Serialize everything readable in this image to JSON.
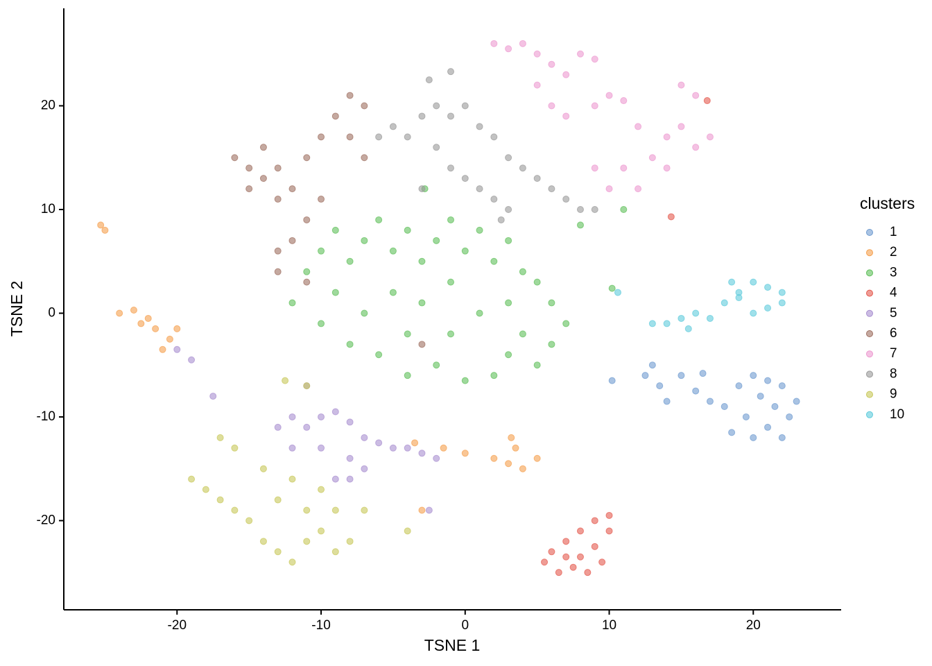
{
  "chart_data": {
    "type": "scatter",
    "x_label": "TSNE 1",
    "y_label": "TSNE 2",
    "legend_title": "clusters",
    "legend": "right",
    "grid": false,
    "xlim": [
      -27.86,
      26.1
    ],
    "ylim": [
      -28.6,
      29.4
    ],
    "xticks": [
      -20,
      -10,
      0,
      10,
      20
    ],
    "yticks": [
      -20,
      -10,
      0,
      10,
      20
    ],
    "series": [
      {
        "name": "1",
        "color": "#6f9bd0",
        "x": [
          12.5,
          13.5,
          14,
          15,
          16,
          17,
          18,
          16.5,
          19,
          20,
          21,
          22,
          23,
          22.5,
          21,
          20,
          19.5,
          21.5,
          18.5,
          20.5,
          13,
          10.2,
          22
        ],
        "y": [
          -6,
          -7,
          -8.5,
          -6,
          -7.5,
          -8.5,
          -9,
          -5.8,
          -7,
          -6,
          -6.5,
          -7,
          -8.5,
          -10,
          -11,
          -12,
          -10,
          -9,
          -11.5,
          -8,
          -5,
          -6.5,
          -12
        ]
      },
      {
        "name": "2",
        "color": "#f5a04f",
        "x": [
          -25.3,
          -25,
          -23,
          -22,
          -21.5,
          -20.5,
          -21,
          -22.5,
          -24,
          -20,
          2,
          3,
          3.5,
          4,
          3.2,
          -1.5,
          0,
          -3.5,
          5,
          -3
        ],
        "y": [
          8.5,
          8,
          0.3,
          -0.5,
          -1.5,
          -2.5,
          -3.5,
          -1,
          0,
          -1.5,
          -14,
          -14.5,
          -13,
          -15,
          -12,
          -13,
          -13.5,
          -12.5,
          -14,
          -19
        ]
      },
      {
        "name": "3",
        "color": "#5fbf5a",
        "x": [
          -12,
          -11,
          -10,
          -9,
          -8,
          -7,
          -6,
          -5,
          -4,
          -3,
          -2,
          -1,
          0,
          1,
          2,
          3,
          4,
          5,
          6,
          7,
          6,
          5,
          3,
          2,
          0,
          -2,
          -4,
          -6,
          -8,
          -10,
          -9,
          -7,
          -5,
          -3,
          -1,
          1,
          3,
          4,
          -1,
          -4,
          8,
          -2.8,
          10.2,
          11
        ],
        "y": [
          1,
          4,
          6,
          8,
          5,
          7,
          9,
          6,
          8,
          5,
          7,
          9,
          6,
          8,
          5,
          7,
          4,
          3,
          1,
          -1,
          -3,
          -5,
          -4,
          -6,
          -6.5,
          -5,
          -6,
          -4,
          -3,
          -1,
          2,
          0,
          2,
          1,
          3,
          0,
          1,
          -2,
          -2,
          -2,
          8.5,
          12,
          2.4,
          10
        ]
      },
      {
        "name": "4",
        "color": "#e45a4f",
        "x": [
          6,
          7,
          8,
          9,
          10,
          6.5,
          7.5,
          8.5,
          9.5,
          5.5,
          8,
          7,
          9,
          10,
          14.3,
          16.8
        ],
        "y": [
          -23,
          -22,
          -21,
          -20,
          -19.5,
          -25,
          -24.5,
          -25,
          -24,
          -24,
          -23.5,
          -23.5,
          -22.5,
          -21,
          9.3,
          20.5
        ]
      },
      {
        "name": "5",
        "color": "#a98fd0",
        "x": [
          -12,
          -11,
          -10,
          -9,
          -8,
          -7,
          -6,
          -5,
          -4,
          -3,
          -2,
          -8,
          -10,
          -12,
          -13,
          -7,
          -9,
          -11,
          -20,
          -19,
          -17.5,
          -2.5,
          -8
        ],
        "y": [
          -10,
          -11,
          -10,
          -9.5,
          -10.5,
          -12,
          -12.5,
          -13,
          -13,
          -13.5,
          -14,
          -14,
          -13,
          -13,
          -11,
          -15,
          -16,
          -7,
          -3.5,
          -4.5,
          -8,
          -19,
          -16
        ]
      },
      {
        "name": "6",
        "color": "#9e6f61",
        "x": [
          -16,
          -15,
          -14,
          -13,
          -12,
          -11,
          -13,
          -15,
          -14,
          -10,
          -9,
          -8,
          -7,
          -8,
          -7,
          -11,
          -12,
          -13,
          -11,
          -13,
          -10,
          -3
        ],
        "y": [
          15,
          14,
          13,
          14,
          12,
          15,
          11,
          12,
          16,
          17,
          19,
          21,
          20,
          17,
          15,
          9,
          7,
          6,
          3,
          4,
          11,
          -3
        ]
      },
      {
        "name": "7",
        "color": "#ed9ad0",
        "x": [
          2,
          3,
          4,
          5,
          6,
          7,
          8,
          9,
          5,
          6,
          7,
          9,
          10,
          11,
          12,
          13,
          14,
          15,
          16,
          17,
          16,
          15,
          11,
          12,
          10,
          14,
          9
        ],
        "y": [
          26,
          25.5,
          26,
          25,
          24,
          23,
          25,
          24.5,
          22,
          20,
          19,
          20,
          21,
          20.5,
          18,
          15,
          17,
          18,
          16,
          17,
          21,
          22,
          14,
          12,
          12,
          14,
          14
        ]
      },
      {
        "name": "8",
        "color": "#9a9a9a",
        "x": [
          -6,
          -5,
          -4,
          -3,
          -2,
          -1,
          0,
          1,
          2,
          3,
          4,
          5,
          6,
          7,
          8,
          -1,
          0,
          1,
          2,
          3,
          -3,
          -2,
          -2.5,
          -1,
          2.5,
          9
        ],
        "y": [
          17,
          18,
          17,
          19,
          20,
          19,
          20,
          18,
          17,
          15,
          14,
          13,
          12,
          11,
          10,
          14,
          13,
          12,
          11,
          10,
          12,
          16,
          22.5,
          23.3,
          9,
          10
        ]
      },
      {
        "name": "9",
        "color": "#c8c85a",
        "x": [
          -19,
          -18,
          -17,
          -16,
          -15,
          -14,
          -13,
          -12,
          -11,
          -10,
          -9,
          -8,
          -9,
          -10,
          -12,
          -14,
          -16,
          -17,
          -13,
          -11,
          -7,
          -12.5,
          -11,
          -4
        ],
        "y": [
          -16,
          -17,
          -18,
          -19,
          -20,
          -22,
          -23,
          -24,
          -22,
          -21,
          -23,
          -22,
          -19,
          -17,
          -16,
          -15,
          -13,
          -12,
          -18,
          -19,
          -19,
          -6.5,
          -7,
          -21
        ]
      },
      {
        "name": "10",
        "color": "#5fcbdc",
        "x": [
          14,
          15,
          16,
          17,
          18,
          19,
          20,
          21,
          22,
          20,
          21,
          19,
          18.5,
          22,
          13,
          10.6,
          15.5
        ],
        "y": [
          -1,
          -0.5,
          0,
          -0.5,
          1,
          2,
          3,
          2.5,
          1,
          0,
          0.5,
          1.5,
          3,
          2,
          -1,
          2,
          -1.5
        ]
      }
    ]
  }
}
